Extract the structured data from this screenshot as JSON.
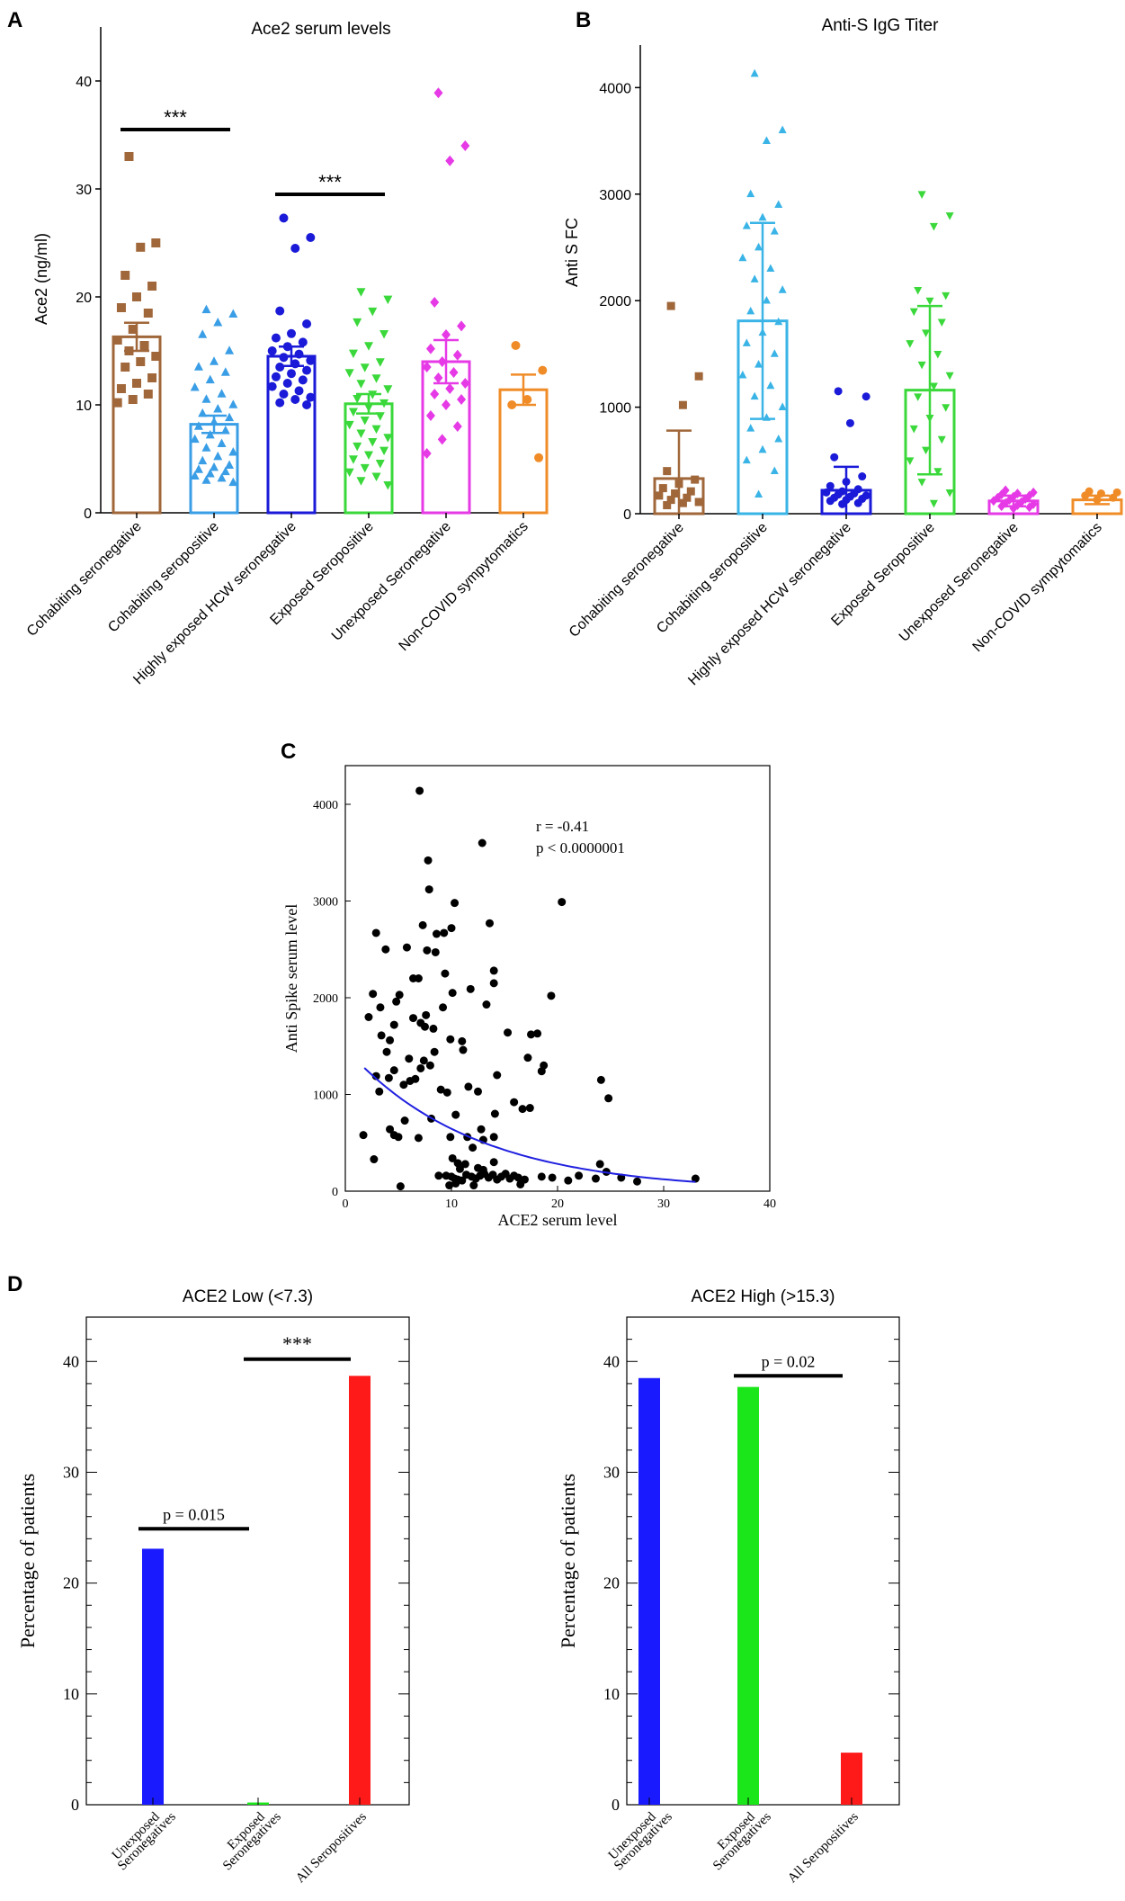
{
  "chart_data": [
    {
      "panel": "A",
      "type": "bar",
      "title": "Ace2  serum levels",
      "ylabel": "Ace2  (ng/ml)",
      "xlabel": "",
      "ylim": [
        0,
        45
      ],
      "yticks": [
        0,
        10,
        20,
        30,
        40
      ],
      "categories": [
        "Cohabiting seronegative",
        "Cohabiting seropositive",
        "Highly exposed HCW seronegative",
        "Exposed Seropositive",
        "Unexposed Seronegative",
        "Non-COVID sympytomatics"
      ],
      "colors": [
        "#a0673a",
        "#3a9ee6",
        "#1a1ad8",
        "#3ad83a",
        "#e63ae6",
        "#f08c28"
      ],
      "markers": [
        "square",
        "triangle",
        "circle",
        "triangle-down",
        "diamond",
        "circle"
      ],
      "values": [
        16.3,
        8.2,
        14.5,
        10.1,
        14.0,
        11.4
      ],
      "errors": [
        1.3,
        0.8,
        0.9,
        0.9,
        2.0,
        1.4
      ],
      "points": [
        [
          33,
          25,
          24.6,
          22,
          21,
          20,
          19,
          18.5,
          17,
          16,
          15.5,
          15,
          14.5,
          14,
          13.5,
          12.5,
          12,
          11.5,
          11,
          10.5,
          10.2
        ],
        [
          18.8,
          18.4,
          17.6,
          16.5,
          15,
          14,
          13.5,
          13,
          12.3,
          11.6,
          11,
          10.5,
          10,
          9.6,
          9.2,
          8.8,
          8.4,
          8,
          7.6,
          7.2,
          6.8,
          6.4,
          6,
          5.6,
          5.2,
          4.8,
          4.4,
          4.2,
          4,
          3.8,
          3.6,
          3.4,
          3.2,
          3,
          2.8
        ],
        [
          27.3,
          25.5,
          24.5,
          18.7,
          17.5,
          16.6,
          16.2,
          15.8,
          15.4,
          15,
          14.7,
          14.4,
          14.1,
          13.8,
          13.5,
          13.2,
          12.9,
          12.6,
          12.3,
          12,
          11.7,
          11.3,
          11,
          10.7,
          10.5,
          10.2,
          10
        ],
        [
          20.5,
          19.8,
          18.7,
          17.7,
          16.6,
          15.5,
          14.8,
          14,
          13.5,
          13,
          12.5,
          12,
          11.5,
          11,
          10.6,
          10.2,
          9.8,
          9.4,
          9,
          8.6,
          8.2,
          7.8,
          7.4,
          7,
          6.6,
          6.2,
          5.8,
          5.4,
          5,
          4.6,
          4.2,
          3.8,
          3.4,
          3,
          2.6
        ],
        [
          38.9,
          34,
          32.6,
          19.5,
          17.3,
          16.5,
          15.2,
          14.6,
          14,
          13.5,
          13,
          12.5,
          12,
          11.5,
          11,
          10.5,
          10,
          9,
          8,
          6.8,
          5.5
        ],
        [
          15.5,
          13.2,
          10.5,
          10,
          5.1
        ]
      ],
      "significance": [
        {
          "label": "***",
          "from": 0,
          "to": 1,
          "y": 35.5
        },
        {
          "label": "***",
          "from": 2,
          "to": 3,
          "y": 29.5
        }
      ]
    },
    {
      "panel": "B",
      "type": "bar",
      "title": "Anti-S  IgG Titer",
      "ylabel": "Anti S FC",
      "xlabel": "",
      "ylim": [
        0,
        4400
      ],
      "yticks": [
        0,
        1000,
        2000,
        3000,
        4000
      ],
      "categories": [
        "Cohabiting seronegative",
        "Cohabiting seropositive",
        "Highly exposed HCW seronegative",
        "Exposed Seropositive",
        "Unexposed Seronegative",
        "Non-COVID sympytomatics"
      ],
      "colors": [
        "#a0673a",
        "#3ab4e6",
        "#1a1ad8",
        "#3ad83a",
        "#e63ae6",
        "#f08c28"
      ],
      "markers": [
        "square",
        "triangle",
        "circle",
        "triangle-down",
        "diamond",
        "circle"
      ],
      "values": [
        330,
        1810,
        220,
        1160,
        120,
        130
      ],
      "errors": [
        450,
        920,
        220,
        790,
        50,
        40
      ],
      "points": [
        [
          1950,
          1290,
          1020,
          400,
          320,
          280,
          240,
          210,
          190,
          170,
          150,
          130,
          110,
          100,
          80
        ],
        [
          4130,
          3600,
          3500,
          3000,
          2900,
          2780,
          2700,
          2650,
          2500,
          2400,
          2300,
          2200,
          2100,
          2000,
          1900,
          1800,
          1700,
          1600,
          1500,
          1400,
          1300,
          1200,
          1100,
          1000,
          900,
          800,
          700,
          600,
          500,
          400,
          180
        ],
        [
          1150,
          1100,
          850,
          530,
          350,
          300,
          260,
          230,
          210,
          200,
          190,
          180,
          170,
          160,
          150,
          140,
          130,
          120,
          100,
          90
        ],
        [
          3000,
          2800,
          2700,
          2100,
          2050,
          2000,
          1900,
          1800,
          1700,
          1600,
          1500,
          1400,
          1300,
          1200,
          1100,
          1000,
          900,
          800,
          700,
          600,
          500,
          400,
          300,
          200,
          100
        ],
        [
          220,
          200,
          190,
          180,
          170,
          160,
          150,
          140,
          130,
          120,
          110,
          100,
          90,
          80,
          70,
          60,
          50
        ],
        [
          210,
          200,
          190,
          170,
          150,
          130
        ]
      ]
    },
    {
      "panel": "C",
      "type": "scatter",
      "title": "",
      "xlabel": "ACE2 serum level",
      "ylabel": "Anti Spike serum level",
      "xlim": [
        0,
        40
      ],
      "ylim": [
        0,
        4400
      ],
      "xticks": [
        0,
        10,
        20,
        30,
        40
      ],
      "yticks": [
        0,
        1000,
        2000,
        3000,
        4000
      ],
      "annotation_r": "r = -0.41",
      "annotation_p": "p < 0.0000001",
      "fit_color": "#2020e0",
      "fit": {
        "a": 1480,
        "b": -0.083
      },
      "points": [
        [
          7,
          4140
        ],
        [
          7.8,
          3420
        ],
        [
          12.9,
          3600
        ],
        [
          7.9,
          3120
        ],
        [
          10.3,
          2980
        ],
        [
          20.4,
          2990
        ],
        [
          10,
          2720
        ],
        [
          9.3,
          2670
        ],
        [
          7.3,
          2750
        ],
        [
          8.6,
          2660
        ],
        [
          13.6,
          2770
        ],
        [
          2.9,
          2670
        ],
        [
          3.8,
          2500
        ],
        [
          5.8,
          2520
        ],
        [
          7.7,
          2490
        ],
        [
          8.5,
          2470
        ],
        [
          14,
          2280
        ],
        [
          6.4,
          2200
        ],
        [
          6.9,
          2200
        ],
        [
          9.4,
          2250
        ],
        [
          14,
          2150
        ],
        [
          11.8,
          2090
        ],
        [
          10.1,
          2050
        ],
        [
          2.6,
          2040
        ],
        [
          5.1,
          2030
        ],
        [
          19.4,
          2020
        ],
        [
          3.3,
          1900
        ],
        [
          4.8,
          1960
        ],
        [
          13.3,
          1930
        ],
        [
          9.2,
          1900
        ],
        [
          7.6,
          1820
        ],
        [
          2.2,
          1800
        ],
        [
          6.4,
          1790
        ],
        [
          4.6,
          1720
        ],
        [
          7.1,
          1740
        ],
        [
          7.5,
          1700
        ],
        [
          8.3,
          1680
        ],
        [
          15.3,
          1640
        ],
        [
          9.9,
          1570
        ],
        [
          17.5,
          1620
        ],
        [
          18.1,
          1630
        ],
        [
          11,
          1550
        ],
        [
          3.4,
          1610
        ],
        [
          4.2,
          1560
        ],
        [
          11.1,
          1460
        ],
        [
          3.9,
          1440
        ],
        [
          8.4,
          1440
        ],
        [
          17.2,
          1380
        ],
        [
          6,
          1370
        ],
        [
          7.4,
          1350
        ],
        [
          8,
          1300
        ],
        [
          18.7,
          1300
        ],
        [
          4.6,
          1250
        ],
        [
          7.1,
          1270
        ],
        [
          14.3,
          1200
        ],
        [
          18.5,
          1240
        ],
        [
          4.1,
          1170
        ],
        [
          2.9,
          1190
        ],
        [
          6.6,
          1160
        ],
        [
          6.1,
          1140
        ],
        [
          24.1,
          1150
        ],
        [
          5.5,
          1100
        ],
        [
          11.6,
          1080
        ],
        [
          9,
          1050
        ],
        [
          3.2,
          1030
        ],
        [
          12.5,
          1030
        ],
        [
          9.6,
          1020
        ],
        [
          24.8,
          960
        ],
        [
          15.9,
          920
        ],
        [
          17.4,
          860
        ],
        [
          16.7,
          850
        ],
        [
          14.1,
          800
        ],
        [
          10.4,
          790
        ],
        [
          8.1,
          750
        ],
        [
          5.6,
          730
        ],
        [
          12.8,
          640
        ],
        [
          4.2,
          640
        ],
        [
          4.6,
          580
        ],
        [
          5,
          560
        ],
        [
          9.9,
          560
        ],
        [
          11.5,
          560
        ],
        [
          14,
          560
        ],
        [
          6.9,
          550
        ],
        [
          13,
          530
        ],
        [
          12,
          450
        ],
        [
          1.7,
          580
        ],
        [
          2.7,
          330
        ],
        [
          10.1,
          340
        ],
        [
          10.6,
          290
        ],
        [
          11.3,
          280
        ],
        [
          14,
          300
        ],
        [
          8.8,
          160
        ],
        [
          9.5,
          160
        ],
        [
          10,
          150
        ],
        [
          10.3,
          130
        ],
        [
          10.6,
          120
        ],
        [
          11,
          110
        ],
        [
          11.4,
          170
        ],
        [
          11.9,
          150
        ],
        [
          12.3,
          130
        ],
        [
          12.7,
          160
        ],
        [
          13.1,
          180
        ],
        [
          13.5,
          140
        ],
        [
          13.9,
          170
        ],
        [
          14.3,
          120
        ],
        [
          14.7,
          150
        ],
        [
          15.1,
          180
        ],
        [
          15.5,
          130
        ],
        [
          15.9,
          160
        ],
        [
          16.3,
          140
        ],
        [
          16.9,
          120
        ],
        [
          9.8,
          60
        ],
        [
          10.4,
          80
        ],
        [
          12.1,
          60
        ],
        [
          16.5,
          70
        ],
        [
          18.5,
          150
        ],
        [
          19.5,
          140
        ],
        [
          21,
          110
        ],
        [
          22,
          160
        ],
        [
          23.6,
          130
        ],
        [
          24,
          280
        ],
        [
          24.6,
          200
        ],
        [
          26,
          140
        ],
        [
          27.5,
          100
        ],
        [
          33,
          130
        ],
        [
          5.2,
          50
        ],
        [
          13,
          220
        ],
        [
          10.8,
          230
        ],
        [
          12.5,
          240
        ]
      ]
    },
    {
      "panel": "D-left",
      "type": "bar",
      "title": "ACE2 Low (<7.3)",
      "xlabel": "",
      "ylabel": "Percentage of patients",
      "ylim": [
        0,
        44
      ],
      "yticks": [
        0,
        10,
        20,
        30,
        40
      ],
      "categories": [
        "Unexposed Seronegatives",
        "Exposed Seronegatives",
        "All Seropositives"
      ],
      "category_lines": [
        [
          "Unexposed",
          "Seronegatives"
        ],
        [
          "Exposed",
          "Seronegatives"
        ],
        [
          "All Seropositives"
        ]
      ],
      "colors": [
        "#1a1aff",
        "#1ae61a",
        "#ff1a1a"
      ],
      "values": [
        23.1,
        0.2,
        38.7
      ],
      "significance": [
        {
          "label": "p = 0.015",
          "from": 0,
          "to": 1,
          "y": 24.9
        },
        {
          "label": "***",
          "from": 1,
          "to": 2,
          "y": 40.2
        }
      ]
    },
    {
      "panel": "D-right",
      "type": "bar",
      "title": "ACE2 High (>15.3)",
      "xlabel": "",
      "ylabel": "Percentage of patients",
      "ylim": [
        0,
        44
      ],
      "yticks": [
        0,
        10,
        20,
        30,
        40
      ],
      "categories": [
        "Unexposed Seronegatives",
        "Exposed Seronegatives",
        "All Seropositives"
      ],
      "category_lines": [
        [
          "Unexposed",
          "Seronegatives"
        ],
        [
          "Exposed",
          "Seronegatives"
        ],
        [
          "All Seropositives"
        ]
      ],
      "colors": [
        "#1a1aff",
        "#1ae61a",
        "#ff1a1a"
      ],
      "values": [
        38.5,
        37.7,
        4.7
      ],
      "significance": [
        {
          "label": "p = 0.02",
          "from": 1,
          "to": 2,
          "y": 38.7
        }
      ]
    }
  ],
  "panel_labels": {
    "a": "A",
    "b": "B",
    "c": "C",
    "d": "D"
  }
}
